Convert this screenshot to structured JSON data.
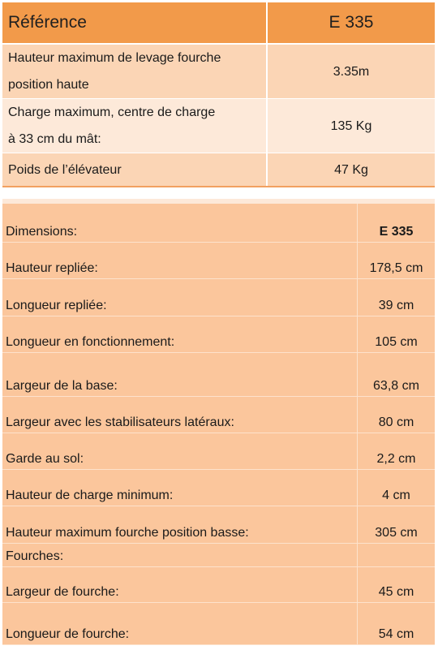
{
  "summary": {
    "header": {
      "label": "Référence",
      "value": "E 335"
    },
    "rows": [
      {
        "label_line1": "Hauteur maximum de levage fourche",
        "label_line2": "position haute",
        "value": "3.35m"
      },
      {
        "label_line1": "Charge maximum, centre de charge",
        "label_line2": "à 33 cm du mât:",
        "value": "135 Kg"
      },
      {
        "label_line1": "Poids de l’élévateur",
        "value": "47 Kg"
      }
    ]
  },
  "dimensions": {
    "header": {
      "label": "Dimensions:",
      "value": "E 335"
    },
    "rows": [
      {
        "label": "Hauteur repliée:",
        "value": "178,5 cm"
      },
      {
        "label": "Longueur repliée:",
        "value": "39 cm"
      },
      {
        "label": "Longueur en fonctionnement:",
        "value": "105 cm"
      },
      {
        "label": "Largeur de la base:",
        "value": "63,8 cm"
      },
      {
        "label": "Largeur avec les stabilisateurs latéraux:",
        "value": "80 cm"
      },
      {
        "label": "Garde au sol:",
        "value": "2,2 cm"
      },
      {
        "label": "Hauteur de charge minimum:",
        "value": "4 cm"
      },
      {
        "label": "Hauteur maximum fourche position basse:",
        "value": "305 cm"
      },
      {
        "label": "Fourches:",
        "value": ""
      },
      {
        "label": "Largeur de fourche:",
        "value": "45 cm"
      },
      {
        "label": "Longueur de fourche:",
        "value": "54 cm"
      }
    ]
  }
}
